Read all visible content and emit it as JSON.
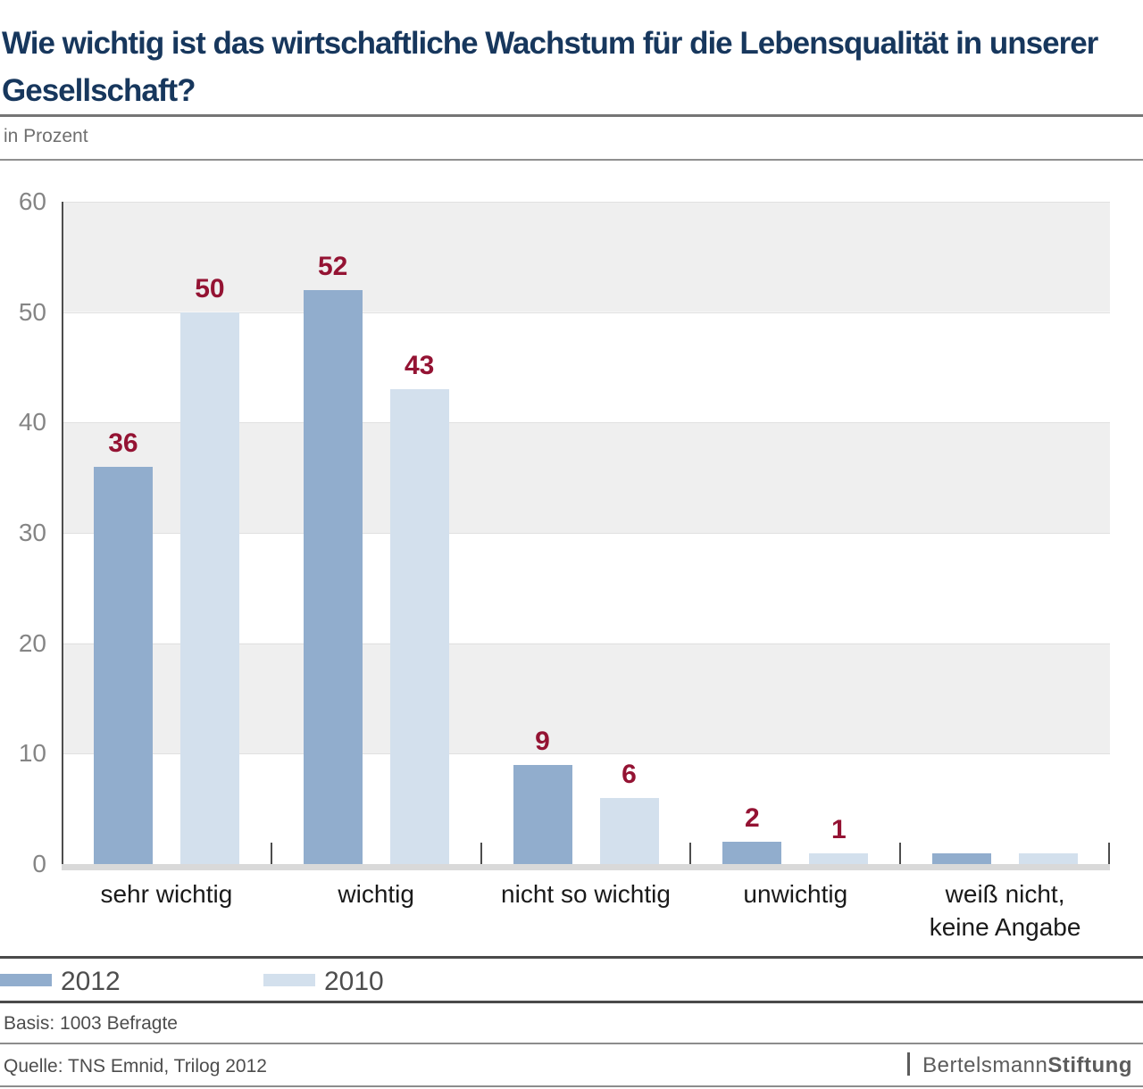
{
  "header": {
    "title": "Wie wichtig ist das wirtschaftliche Wachstum für die Lebensqualität in unserer Gesellschaft?",
    "subtitle": "in Prozent"
  },
  "chart_data": {
    "type": "bar",
    "title": "Wie wichtig ist das wirtschaftliche Wachstum für die Lebensqualität in unserer Gesellschaft?",
    "unit": "in Prozent",
    "categories": [
      "sehr wichtig",
      "wichtig",
      "nicht so wichtig",
      "unwichtig",
      "weiß nicht,\nkeine Angabe"
    ],
    "series": [
      {
        "name": "2012",
        "color": "#91adcd",
        "values": [
          36,
          52,
          9,
          2,
          1
        ],
        "labels": [
          "36",
          "52",
          "9",
          "2",
          ""
        ]
      },
      {
        "name": "2010",
        "color": "#d3e0ed",
        "values": [
          50,
          43,
          6,
          1,
          1
        ],
        "labels": [
          "50",
          "43",
          "6",
          "1",
          ""
        ]
      }
    ],
    "ylim": [
      0,
      60
    ],
    "yticks": [
      0,
      10,
      20,
      30,
      40,
      50,
      60
    ],
    "grid": "alternating horizontal bands every 10",
    "legend_position": "bottom-left",
    "value_label_color": "#941333"
  },
  "footer": {
    "basis": "Basis: 1003 Befragte",
    "source": "Quelle: TNS Emnid, Trilog 2012",
    "brand": {
      "name": "Bertelsmann",
      "suffix": "Stiftung"
    }
  },
  "colors": {
    "title": "#17375d",
    "series_2012": "#91adcd",
    "series_2010": "#d3e0ed",
    "value_labels": "#941333",
    "band_gray": "#efefef",
    "axis": "#4d4d4d",
    "y_labels": "#858585",
    "category_labels": "#1a1a1a",
    "baseline": "#d9d9d9"
  }
}
